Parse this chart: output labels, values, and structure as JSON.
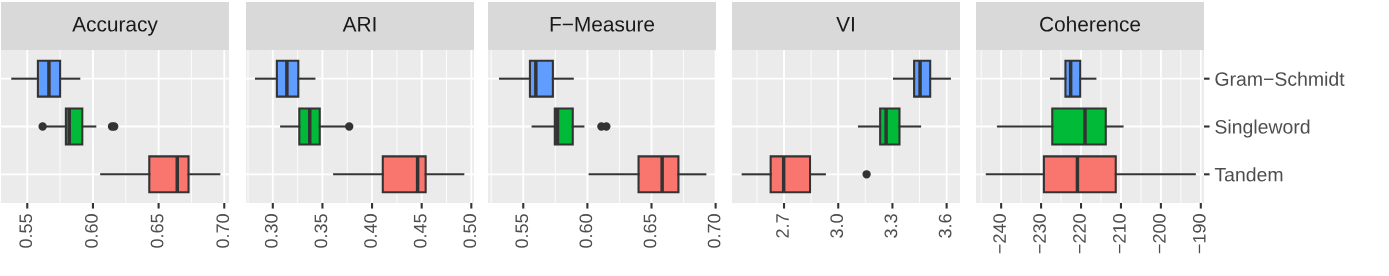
{
  "chart_data": [
    {
      "type": "box",
      "title": "Accuracy",
      "orientation": "horizontal",
      "categories": [
        null,
        null,
        null
      ],
      "colors": [
        "#619cff",
        "#00ba38",
        "#f8766d"
      ],
      "grid": true,
      "tick_labels": "x",
      "xlim": [
        0.53,
        0.7036
      ],
      "xticks": [
        {
          "value": 0.55,
          "label": "0.55"
        },
        {
          "value": 0.6,
          "label": "0.60"
        },
        {
          "value": 0.65,
          "label": "0.65"
        },
        {
          "value": 0.7,
          "label": "0.70"
        }
      ],
      "boxes": [
        {
          "low": 0.5386,
          "q1": 0.5581,
          "median": 0.5665,
          "q3": 0.575,
          "high": 0.5896
        },
        {
          "low": 0.563,
          "q1": 0.5794,
          "median": 0.582,
          "q3": 0.5919,
          "high": 0.6018,
          "outliers": [
            0.5617,
            0.6145,
            0.6162
          ]
        },
        {
          "low": 0.6063,
          "q1": 0.6429,
          "median": 0.6642,
          "q3": 0.6728,
          "high": 0.6962
        }
      ]
    },
    {
      "type": "box",
      "title": "ARI",
      "orientation": "horizontal",
      "categories": [
        null,
        null,
        null
      ],
      "colors": [
        "#619cff",
        "#00ba38",
        "#f8766d"
      ],
      "grid": true,
      "tick_labels": "x",
      "xlim": [
        0.273,
        0.5027
      ],
      "xticks": [
        {
          "value": 0.3,
          "label": "0.30"
        },
        {
          "value": 0.35,
          "label": "0.35"
        },
        {
          "value": 0.4,
          "label": "0.40"
        },
        {
          "value": 0.45,
          "label": "0.45"
        },
        {
          "value": 0.5,
          "label": "0.50"
        }
      ],
      "boxes": [
        {
          "low": 0.2831,
          "q1": 0.3041,
          "median": 0.3142,
          "q3": 0.3257,
          "high": 0.3419
        },
        {
          "low": 0.3084,
          "q1": 0.3267,
          "median": 0.3372,
          "q3": 0.3473,
          "high": 0.374,
          "outliers": [
            0.377
          ]
        },
        {
          "low": 0.3618,
          "q1": 0.4108,
          "median": 0.4459,
          "q3": 0.454,
          "high": 0.4919
        }
      ]
    },
    {
      "type": "box",
      "title": "F−Measure",
      "orientation": "horizontal",
      "categories": [
        null,
        null,
        null
      ],
      "colors": [
        "#619cff",
        "#00ba38",
        "#f8766d"
      ],
      "grid": true,
      "tick_labels": "x",
      "xlim": [
        0.5225,
        0.7003
      ],
      "xticks": [
        {
          "value": 0.55,
          "label": "0.55"
        },
        {
          "value": 0.6,
          "label": "0.60"
        },
        {
          "value": 0.65,
          "label": "0.65"
        },
        {
          "value": 0.7,
          "label": "0.70"
        }
      ],
      "boxes": [
        {
          "low": 0.5319,
          "q1": 0.5552,
          "median": 0.5598,
          "q3": 0.5731,
          "high": 0.5886
        },
        {
          "low": 0.5573,
          "q1": 0.5746,
          "median": 0.5767,
          "q3": 0.5886,
          "high": 0.5969,
          "outliers": [
            0.6109,
            0.6148
          ]
        },
        {
          "low": 0.6018,
          "q1": 0.6399,
          "median": 0.6583,
          "q3": 0.671,
          "high": 0.692
        }
      ]
    },
    {
      "type": "box",
      "title": "VI",
      "orientation": "horizontal",
      "categories": [
        null,
        null,
        null
      ],
      "colors": [
        "#619cff",
        "#00ba38",
        "#f8766d"
      ],
      "grid": true,
      "tick_labels": "x",
      "xlim": [
        2.412,
        3.674
      ],
      "xticks": [
        2.7,
        {
          "value": 3.0,
          "label": "3.0"
        },
        3.3,
        3.6
      ],
      "boxes": [
        {
          "low": 3.309,
          "q1": 3.42,
          "median": 3.453,
          "q3": 3.509,
          "high": 3.618
        },
        {
          "low": 3.115,
          "q1": 3.232,
          "median": 3.265,
          "q3": 3.339,
          "high": 3.453
        },
        {
          "low": 2.471,
          "q1": 2.626,
          "median": 2.698,
          "q3": 2.844,
          "high": 2.926,
          "outliers": [
            3.157
          ]
        }
      ]
    },
    {
      "type": "box",
      "title": "Coherence",
      "orientation": "horizontal",
      "categories": [
        "Gram−Schmidt",
        "Singleword",
        "Tandem"
      ],
      "colors": [
        "#619cff",
        "#00ba38",
        "#f8766d"
      ],
      "grid": true,
      "xlim": [
        -246.3,
        -189.2
      ],
      "xticks": [
        {
          "value": -240,
          "label": "−240"
        },
        {
          "value": -230,
          "label": "−230"
        },
        {
          "value": -220,
          "label": "−220"
        },
        {
          "value": -210,
          "label": "−210"
        },
        {
          "value": -200,
          "label": "−200"
        },
        {
          "value": -190,
          "label": "−190"
        }
      ],
      "boxes": [
        {
          "low": -227.5,
          "q1": -223.9,
          "median": -222.6,
          "q3": -220.2,
          "high": -216.4
        },
        {
          "low": -240.8,
          "q1": -227.2,
          "median": -219.0,
          "q3": -213.8,
          "high": -209.6
        },
        {
          "low": -243.6,
          "q1": -229.3,
          "median": -220.9,
          "q3": -211.3,
          "high": -191.5
        }
      ]
    }
  ]
}
